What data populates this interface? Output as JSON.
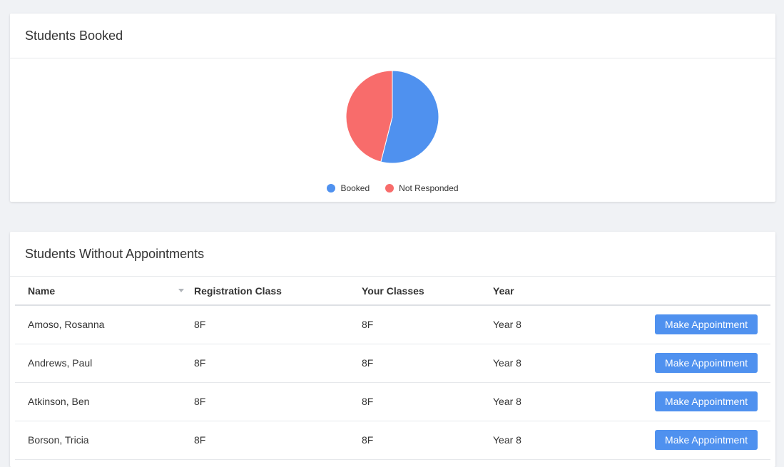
{
  "booked_card": {
    "title": "Students Booked"
  },
  "chart_data": {
    "type": "pie",
    "slices": [
      {
        "name": "Booked",
        "value": 54,
        "color": "#4f91ef"
      },
      {
        "name": "Not Responded",
        "value": 46,
        "color": "#f86c6b"
      }
    ],
    "legend_position": "bottom"
  },
  "without_card": {
    "title": "Students Without Appointments",
    "columns": [
      "Name",
      "Registration Class",
      "Your Classes",
      "Year"
    ],
    "rows": [
      {
        "name": "Amoso, Rosanna",
        "reg": "8F",
        "classes": "8F",
        "year": "Year 8",
        "action": "Make Appointment"
      },
      {
        "name": "Andrews, Paul",
        "reg": "8F",
        "classes": "8F",
        "year": "Year 8",
        "action": "Make Appointment"
      },
      {
        "name": "Atkinson, Ben",
        "reg": "8F",
        "classes": "8F",
        "year": "Year 8",
        "action": "Make Appointment"
      },
      {
        "name": "Borson, Tricia",
        "reg": "8F",
        "classes": "8F",
        "year": "Year 8",
        "action": "Make Appointment"
      }
    ]
  }
}
